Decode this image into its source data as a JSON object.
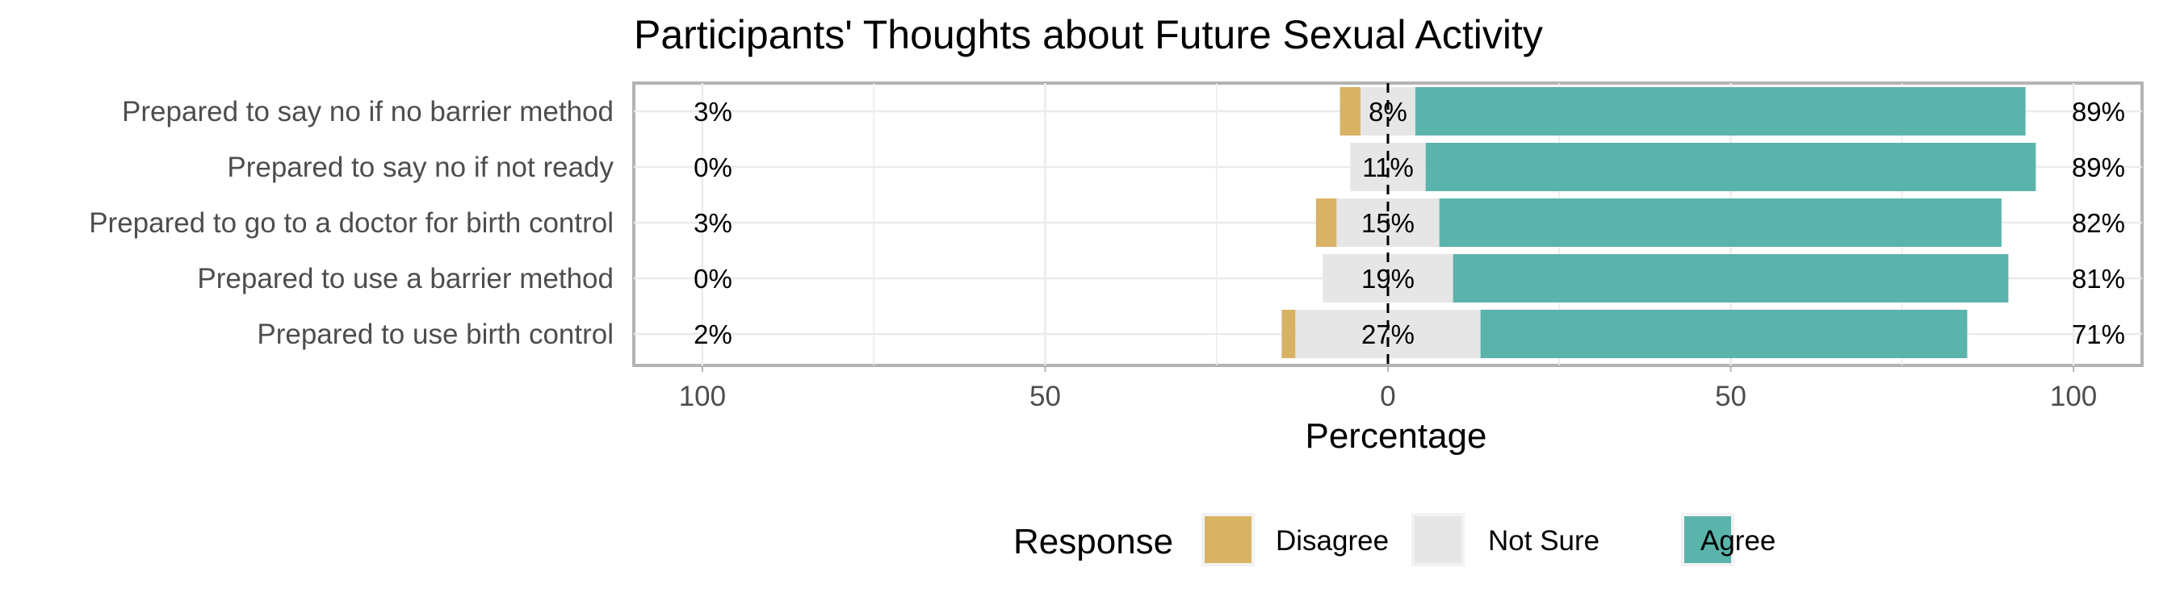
{
  "chart_data": {
    "type": "bar",
    "subtype": "diverging-stacked-horizontal",
    "title": "Participants' Thoughts about Future Sexual Activity",
    "xlabel": "Percentage",
    "xlim": [
      -110,
      110
    ],
    "x_ticks": [
      {
        "value": -100,
        "label": "100"
      },
      {
        "value": -50,
        "label": "50"
      },
      {
        "value": 0,
        "label": "0"
      },
      {
        "value": 50,
        "label": "50"
      },
      {
        "value": 100,
        "label": "100"
      }
    ],
    "categories": [
      "Prepared to say no if no barrier method",
      "Prepared to say no if not ready",
      "Prepared to go to a doctor for birth control",
      "Prepared to use a barrier method",
      "Prepared to use birth control"
    ],
    "series": [
      {
        "name": "Disagree",
        "color": "#D8B365",
        "values": [
          3,
          0,
          3,
          0,
          2
        ]
      },
      {
        "name": "Not Sure",
        "color": "#E6E6E6",
        "values": [
          8,
          11,
          15,
          19,
          27
        ]
      },
      {
        "name": "Agree",
        "color": "#5AB4AC",
        "values": [
          89,
          89,
          82,
          81,
          71
        ]
      }
    ],
    "labels": {
      "low": [
        "3%",
        "0%",
        "3%",
        "0%",
        "2%"
      ],
      "neutral": [
        "8%",
        "11%",
        "15%",
        "19%",
        "27%"
      ],
      "high": [
        "89%",
        "89%",
        "82%",
        "81%",
        "71%"
      ]
    },
    "center_line": "dashed",
    "grid": true,
    "legend": {
      "title": "Response",
      "position": "bottom",
      "items": [
        {
          "label": "Disagree",
          "color": "#D8B365"
        },
        {
          "label": "Not Sure",
          "color": "#E6E6E6"
        },
        {
          "label": "Agree",
          "color": "#5AB4AC"
        }
      ]
    }
  }
}
